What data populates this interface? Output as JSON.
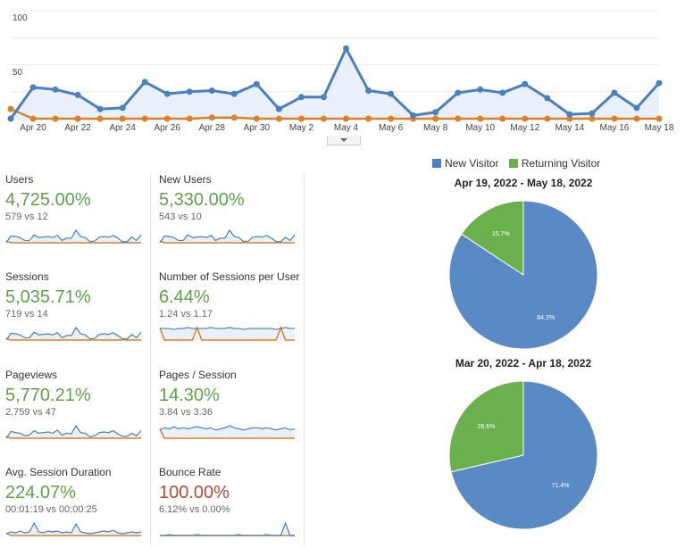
{
  "chart_data": [
    {
      "type": "line",
      "title": "",
      "ylim": [
        0,
        100
      ],
      "yticks": [
        "100",
        "50"
      ],
      "grid": true,
      "x_tick_labels": [
        "Apr 20",
        "Apr 22",
        "Apr 24",
        "Apr 26",
        "Apr 28",
        "Apr 30",
        "May 2",
        "May 4",
        "May 6",
        "May 8",
        "May 10",
        "May 12",
        "May 14",
        "May 16",
        "May 18"
      ],
      "x": [
        "Apr 19",
        "Apr 20",
        "Apr 21",
        "Apr 22",
        "Apr 23",
        "Apr 24",
        "Apr 25",
        "Apr 26",
        "Apr 27",
        "Apr 28",
        "Apr 29",
        "Apr 30",
        "May 1",
        "May 2",
        "May 3",
        "May 4",
        "May 5",
        "May 6",
        "May 7",
        "May 8",
        "May 9",
        "May 10",
        "May 11",
        "May 12",
        "May 13",
        "May 14",
        "May 15",
        "May 16",
        "May 17",
        "May 18"
      ],
      "series": [
        {
          "color": "#4a7fc1",
          "values": [
            0,
            29,
            27,
            22,
            9,
            10,
            34,
            23,
            25,
            26,
            23,
            32,
            9,
            20,
            20,
            65,
            26,
            23,
            3,
            6,
            24,
            27,
            24,
            32,
            19,
            4,
            5,
            24,
            10,
            33
          ]
        },
        {
          "color": "#d9822b",
          "values": [
            9,
            0,
            0,
            0,
            0,
            0,
            0,
            0,
            0,
            1,
            1,
            0,
            0,
            0,
            0,
            0,
            0,
            0,
            0,
            0,
            0,
            0,
            0,
            0,
            0,
            0,
            0,
            0,
            0,
            0
          ]
        }
      ]
    },
    {
      "type": "pie",
      "title": "Apr 19, 2022 - May 18, 2022",
      "slices": [
        {
          "label": "New Visitor",
          "value": 84.3,
          "text": "84.3%",
          "color": "#5a8ac6"
        },
        {
          "label": "Returning Visitor",
          "value": 15.7,
          "text": "15.7%",
          "color": "#6ab04c"
        }
      ]
    },
    {
      "type": "pie",
      "title": "Mar 20, 2022 - Apr 18, 2022",
      "slices": [
        {
          "label": "New Visitor",
          "value": 71.4,
          "text": "71.4%",
          "color": "#5a8ac6"
        },
        {
          "label": "Returning Visitor",
          "value": 28.6,
          "text": "28.6%",
          "color": "#6ab04c"
        }
      ]
    }
  ],
  "legend": [
    {
      "label": "New Visitor",
      "color": "#4a7fc1"
    },
    {
      "label": "Returning Visitor",
      "color": "#6ab04c"
    }
  ],
  "metrics": [
    {
      "name": "Users",
      "value": "4,725.00%",
      "compare": "579 vs 12",
      "trend": "up",
      "spark": [
        [
          0,
          12,
          11,
          9,
          4,
          4,
          14,
          9,
          10,
          11,
          9,
          13,
          4,
          8,
          8,
          22,
          11,
          9,
          2,
          3,
          10,
          11,
          10,
          13,
          8,
          2,
          2,
          10,
          4,
          14
        ],
        [
          3,
          0,
          0,
          0,
          0,
          0,
          0,
          0,
          0,
          0,
          0,
          0,
          0,
          0,
          0,
          0,
          0,
          0,
          0,
          0,
          0,
          0,
          0,
          0,
          0,
          0,
          0,
          0,
          0,
          0
        ]
      ]
    },
    {
      "name": "New Users",
      "value": "5,330.00%",
      "compare": "543 vs 10",
      "trend": "up",
      "spark": [
        [
          0,
          12,
          11,
          9,
          4,
          4,
          14,
          9,
          10,
          11,
          9,
          13,
          4,
          8,
          8,
          22,
          11,
          9,
          2,
          3,
          10,
          11,
          10,
          13,
          8,
          2,
          2,
          10,
          4,
          14
        ],
        [
          3,
          0,
          0,
          0,
          0,
          0,
          0,
          0,
          0,
          0,
          0,
          0,
          0,
          0,
          0,
          0,
          0,
          0,
          0,
          0,
          0,
          0,
          0,
          0,
          0,
          0,
          0,
          0,
          0,
          0
        ]
      ]
    },
    {
      "name": "Sessions",
      "value": "5,035.71%",
      "compare": "719 vs 14",
      "trend": "up",
      "spark": [
        [
          0,
          12,
          11,
          9,
          4,
          4,
          14,
          9,
          10,
          11,
          9,
          13,
          4,
          8,
          8,
          22,
          11,
          9,
          2,
          3,
          10,
          11,
          10,
          13,
          8,
          2,
          2,
          10,
          4,
          14
        ],
        [
          3,
          0,
          0,
          0,
          0,
          0,
          0,
          0,
          0,
          0,
          0,
          0,
          0,
          0,
          0,
          0,
          0,
          0,
          0,
          0,
          0,
          0,
          0,
          0,
          0,
          0,
          0,
          0,
          0,
          0
        ]
      ]
    },
    {
      "name": "Number of Sessions per User",
      "value": "6.44%",
      "compare": "1.24 vs 1.17",
      "trend": "up",
      "spark": [
        [
          12,
          12,
          12,
          11,
          12,
          12,
          13,
          12,
          12,
          12,
          12,
          13,
          12,
          12,
          12,
          13,
          12,
          12,
          11,
          12,
          12,
          12,
          12,
          12,
          12,
          11,
          12,
          13,
          12,
          12
        ],
        [
          13,
          0,
          0,
          0,
          0,
          0,
          0,
          0,
          13,
          0,
          0,
          0,
          0,
          0,
          0,
          0,
          0,
          0,
          0,
          0,
          0,
          0,
          0,
          0,
          0,
          0,
          13,
          0,
          0,
          0
        ]
      ]
    },
    {
      "name": "Pageviews",
      "value": "5,770.21%",
      "compare": "2,759 vs 47",
      "trend": "up",
      "spark": [
        [
          0,
          11,
          9,
          8,
          4,
          5,
          12,
          8,
          9,
          10,
          8,
          13,
          5,
          8,
          7,
          20,
          9,
          8,
          2,
          4,
          9,
          10,
          9,
          12,
          7,
          3,
          3,
          8,
          4,
          12
        ],
        [
          3,
          0,
          0,
          0,
          0,
          0,
          0,
          0,
          0,
          0,
          0,
          0,
          0,
          0,
          0,
          0,
          0,
          0,
          0,
          0,
          0,
          0,
          0,
          0,
          0,
          0,
          0,
          0,
          0,
          0
        ]
      ]
    },
    {
      "name": "Pages / Session",
      "value": "14.30%",
      "compare": "3.84 vs 3.36",
      "trend": "up",
      "spark": [
        [
          8,
          10,
          9,
          11,
          9,
          10,
          9,
          10,
          11,
          10,
          9,
          10,
          8,
          9,
          10,
          12,
          10,
          9,
          8,
          9,
          10,
          10,
          9,
          10,
          9,
          8,
          9,
          10,
          8,
          9
        ],
        [
          9,
          0,
          0,
          0,
          0,
          0,
          0,
          0,
          0,
          0,
          0,
          0,
          0,
          0,
          0,
          0,
          0,
          0,
          0,
          0,
          0,
          0,
          0,
          0,
          0,
          0,
          0,
          0,
          0,
          0
        ]
      ]
    },
    {
      "name": "Avg. Session Duration",
      "value": "224.07%",
      "compare": "00:01:19 vs 00:00:25",
      "trend": "up",
      "spark": [
        [
          2,
          4,
          3,
          5,
          3,
          4,
          14,
          4,
          3,
          5,
          4,
          5,
          3,
          4,
          3,
          13,
          4,
          3,
          2,
          3,
          4,
          5,
          4,
          6,
          3,
          2,
          3,
          4,
          3,
          4
        ],
        [
          3,
          0,
          0,
          0,
          0,
          0,
          0,
          0,
          0,
          0,
          0,
          0,
          0,
          0,
          0,
          0,
          0,
          0,
          0,
          0,
          0,
          0,
          0,
          0,
          0,
          0,
          0,
          0,
          0,
          0
        ]
      ]
    },
    {
      "name": "Bounce Rate",
      "value": "100.00%",
      "compare": "6.12% vs 0.00%",
      "trend": "down",
      "spark": [
        [
          0,
          0,
          1,
          0,
          0,
          0,
          0,
          0,
          1,
          0,
          0,
          0,
          0,
          0,
          0,
          0,
          0,
          1,
          0,
          0,
          0,
          0,
          0,
          1,
          0,
          0,
          0,
          14,
          0,
          0
        ],
        [
          0,
          0,
          0,
          0,
          0,
          0,
          0,
          0,
          0,
          0,
          0,
          0,
          0,
          0,
          0,
          0,
          0,
          0,
          0,
          0,
          0,
          0,
          0,
          0,
          0,
          0,
          0,
          0,
          0,
          0
        ]
      ]
    }
  ]
}
